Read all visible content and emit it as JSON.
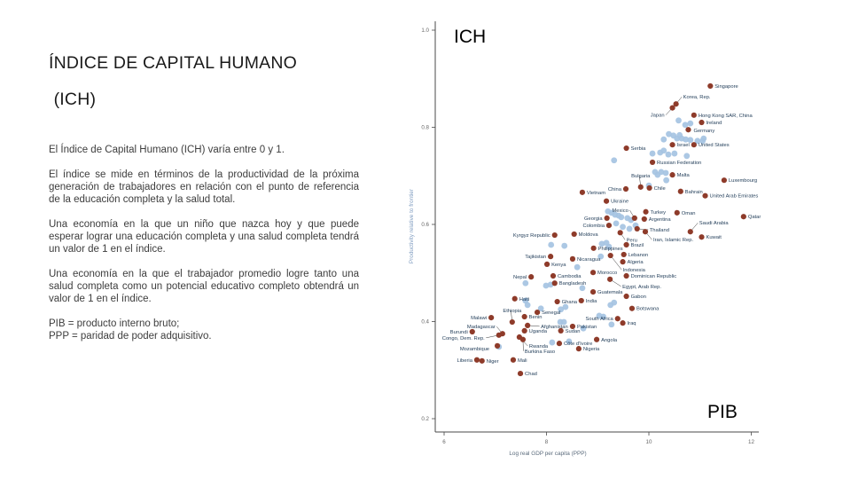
{
  "slide": {
    "title_line1": "ÍNDICE DE CAPITAL HUMANO",
    "title_line2": " (ICH)",
    "paragraphs": [
      "El Índice de Capital Humano (ICH) varía entre 0 y 1.",
      "El índice se mide en términos de la productividad de la próxima generación de trabajadores en relación con el punto de referencia de la educación completa y la salud total.",
      "Una economía en la que un niño que nazca hoy y que puede esperar lograr una educación completa y una salud completa tendrá un valor de 1 en el índice.",
      "Una economía en la que el trabajador promedio logre tanto una salud completa como un potencial educativo completo obtendrá un valor de 1 en el índice.",
      "PIB = producto interno bruto;\nPPP = paridad de poder adquisitivo."
    ]
  },
  "chart_data": {
    "type": "scatter",
    "title": "",
    "xlabel": "Log real GDP per capita (PPP)",
    "ylabel": "Productivity relative to frontier",
    "corner_label_top": "ICH",
    "corner_label_bottom": "PIB",
    "xlim": [
      6,
      12
    ],
    "ylim": [
      0.2,
      1.0
    ],
    "x_ticks": [
      6,
      8,
      10,
      12
    ],
    "y_ticks": [
      0.2,
      0.4,
      0.6,
      0.8,
      1.0
    ],
    "grid": false,
    "legend": "none",
    "colors": {
      "labeled_dot": "#8e3b2a",
      "unlabeled_dot": "#a5c3e2",
      "country_label": "#1f3b57",
      "leader_line": "#3a3a3a",
      "axis": "#4a4a4a",
      "tick_label": "#666666",
      "x_title": "#5b6b7c",
      "y_title": "#7f9cc0",
      "corner_label": "#000000"
    },
    "series": [
      {
        "name": "labeled-countries",
        "points": [
          {
            "name": "Singapore",
            "x": 11.2,
            "y": 0.885
          },
          {
            "name": "Korea, Rep.",
            "x": 10.53,
            "y": 0.848,
            "lox": 3,
            "loy": -8,
            "leader": true
          },
          {
            "name": "Japan",
            "x": 10.46,
            "y": 0.84,
            "side": "l",
            "lox": -4,
            "loy": 8,
            "leader": true
          },
          {
            "name": "Hong Kong SAR, China",
            "x": 10.88,
            "y": 0.825
          },
          {
            "name": "Ireland",
            "x": 11.03,
            "y": 0.81
          },
          {
            "name": "Germany",
            "x": 10.77,
            "y": 0.795,
            "lox": 1,
            "loy": 1
          },
          {
            "name": "Israel",
            "x": 10.46,
            "y": 0.764
          },
          {
            "name": "United States",
            "x": 10.88,
            "y": 0.764
          },
          {
            "name": "Serbia",
            "x": 9.56,
            "y": 0.757
          },
          {
            "name": "Russian Federation",
            "x": 10.07,
            "y": 0.728
          },
          {
            "name": "Malta",
            "x": 10.46,
            "y": 0.702
          },
          {
            "name": "Luxembourg",
            "x": 11.47,
            "y": 0.691
          },
          {
            "name": "Bulgaria",
            "x": 9.84,
            "y": 0.677,
            "anchor": "middle",
            "lox": 0,
            "loy": -13,
            "leader": true
          },
          {
            "name": "China",
            "x": 9.55,
            "y": 0.673,
            "side": "l"
          },
          {
            "name": "Chile",
            "x": 10.01,
            "y": 0.675
          },
          {
            "name": "Vietnam",
            "x": 8.7,
            "y": 0.666
          },
          {
            "name": "Bahrain",
            "x": 10.62,
            "y": 0.668
          },
          {
            "name": "United Arab Emirates",
            "x": 11.1,
            "y": 0.659
          },
          {
            "name": "Ukraine",
            "x": 9.17,
            "y": 0.648
          },
          {
            "name": "Mexico",
            "x": 9.72,
            "y": 0.613,
            "side": "l",
            "lox": -2,
            "loy": -9,
            "leader": true
          },
          {
            "name": "Turkey",
            "x": 9.94,
            "y": 0.626
          },
          {
            "name": "Oman",
            "x": 10.55,
            "y": 0.624
          },
          {
            "name": "Qatar",
            "x": 11.85,
            "y": 0.616
          },
          {
            "name": "Georgia",
            "x": 9.18,
            "y": 0.613,
            "side": "l"
          },
          {
            "name": "Argentina",
            "x": 9.91,
            "y": 0.611
          },
          {
            "name": "Colombia",
            "x": 9.22,
            "y": 0.598,
            "side": "l"
          },
          {
            "name": "Saudi Arabia",
            "x": 10.81,
            "y": 0.585,
            "lox": 5,
            "loy": -10,
            "leader": true
          },
          {
            "name": "Thailand",
            "x": 9.77,
            "y": 0.591,
            "lox": 9,
            "loy": 1,
            "leader": true
          },
          {
            "name": "Iran, Islamic Rep.",
            "x": 9.93,
            "y": 0.585,
            "lox": 4,
            "loy": 9,
            "leader": true
          },
          {
            "name": "Kuwait",
            "x": 11.03,
            "y": 0.574
          },
          {
            "name": "Peru",
            "x": 9.44,
            "y": 0.583,
            "lox": 2,
            "loy": 8,
            "leader": true
          },
          {
            "name": "Moldova",
            "x": 8.54,
            "y": 0.58
          },
          {
            "name": "Kyrgyz Republic",
            "x": 8.16,
            "y": 0.578,
            "side": "l"
          },
          {
            "name": "Brazil",
            "x": 9.56,
            "y": 0.558
          },
          {
            "name": "Philippines",
            "x": 8.92,
            "y": 0.551
          },
          {
            "name": "Lebanon",
            "x": 9.51,
            "y": 0.538
          },
          {
            "name": "Indonesia",
            "x": 9.25,
            "y": 0.536,
            "lox": 9,
            "loy": 16,
            "leader": true
          },
          {
            "name": "Algeria",
            "x": 9.49,
            "y": 0.523
          },
          {
            "name": "Tajikistan",
            "x": 8.08,
            "y": 0.534,
            "side": "l"
          },
          {
            "name": "Nicaragua",
            "x": 8.51,
            "y": 0.529
          },
          {
            "name": "Kenya",
            "x": 8.01,
            "y": 0.518
          },
          {
            "name": "Morocco",
            "x": 8.91,
            "y": 0.501
          },
          {
            "name": "Dominican Republic",
            "x": 9.56,
            "y": 0.494
          },
          {
            "name": "Nepal",
            "x": 7.7,
            "y": 0.492,
            "side": "l"
          },
          {
            "name": "Cambodia",
            "x": 8.13,
            "y": 0.494
          },
          {
            "name": "Egypt, Arab Rep.",
            "x": 9.24,
            "y": 0.487,
            "lox": 9,
            "loy": 8,
            "leader": true
          },
          {
            "name": "Bangladesh",
            "x": 8.16,
            "y": 0.479
          },
          {
            "name": "Guatemala",
            "x": 8.91,
            "y": 0.461
          },
          {
            "name": "Gabon",
            "x": 9.56,
            "y": 0.452
          },
          {
            "name": "Haiti",
            "x": 7.38,
            "y": 0.447
          },
          {
            "name": "Ghana",
            "x": 8.21,
            "y": 0.441
          },
          {
            "name": "India",
            "x": 8.68,
            "y": 0.443
          },
          {
            "name": "Botswana",
            "x": 9.67,
            "y": 0.427
          },
          {
            "name": "Senegal",
            "x": 7.82,
            "y": 0.419
          },
          {
            "name": "Ethiopia",
            "x": 7.33,
            "y": 0.399,
            "anchor": "middle",
            "lox": 0,
            "loy": -13,
            "leader": true
          },
          {
            "name": "Malawi",
            "x": 6.92,
            "y": 0.408,
            "side": "l"
          },
          {
            "name": "Benin",
            "x": 7.57,
            "y": 0.41
          },
          {
            "name": "South Africa",
            "x": 9.39,
            "y": 0.406,
            "side": "l"
          },
          {
            "name": "Iraq",
            "x": 9.49,
            "y": 0.397
          },
          {
            "name": "Madagascar",
            "x": 7.14,
            "y": 0.375,
            "side": "l",
            "lox": -3,
            "loy": -8,
            "leader": true
          },
          {
            "name": "Afghanistan",
            "x": 7.63,
            "y": 0.392,
            "lox": 10,
            "loy": 1,
            "leader": true
          },
          {
            "name": "Pakistan",
            "x": 8.51,
            "y": 0.39
          },
          {
            "name": "Uganda",
            "x": 7.57,
            "y": 0.381
          },
          {
            "name": "Sudan",
            "x": 8.28,
            "y": 0.381
          },
          {
            "name": "Burundi",
            "x": 6.55,
            "y": 0.379,
            "side": "l"
          },
          {
            "name": "Congo, Dem. Rep.",
            "x": 7.07,
            "y": 0.372,
            "side": "l",
            "lox": -11,
            "loy": 3,
            "leader": true
          },
          {
            "name": "Angola",
            "x": 8.98,
            "y": 0.363
          },
          {
            "name": "Rwanda",
            "x": 7.47,
            "y": 0.368,
            "lox": 6,
            "loy": 10,
            "leader": true
          },
          {
            "name": "Mozambique",
            "x": 7.04,
            "y": 0.35,
            "side": "l",
            "lox": -4,
            "loy": 3
          },
          {
            "name": "Côte d'Ivoire",
            "x": 8.25,
            "y": 0.355
          },
          {
            "name": "Burkina Faso",
            "x": 7.54,
            "y": 0.363,
            "lox": -3,
            "loy": 13,
            "leader": true
          },
          {
            "name": "Nigeria",
            "x": 8.63,
            "y": 0.344
          },
          {
            "name": "Liberia",
            "x": 6.64,
            "y": 0.321,
            "side": "l"
          },
          {
            "name": "Niger",
            "x": 6.74,
            "y": 0.319
          },
          {
            "name": "Mali",
            "x": 7.35,
            "y": 0.321
          },
          {
            "name": "Chad",
            "x": 7.49,
            "y": 0.293
          }
        ]
      },
      {
        "name": "unlabeled-countries",
        "points": [
          [
            10.58,
            0.814
          ],
          [
            10.71,
            0.805
          ],
          [
            10.81,
            0.808
          ],
          [
            10.29,
            0.775
          ],
          [
            10.39,
            0.786
          ],
          [
            10.48,
            0.783
          ],
          [
            10.55,
            0.777
          ],
          [
            10.64,
            0.777
          ],
          [
            10.72,
            0.775
          ],
          [
            10.81,
            0.774
          ],
          [
            10.95,
            0.772
          ],
          [
            11.05,
            0.772
          ],
          [
            10.6,
            0.784
          ],
          [
            11.07,
            0.777
          ],
          [
            10.07,
            0.746
          ],
          [
            10.22,
            0.748
          ],
          [
            10.29,
            0.752
          ],
          [
            10.38,
            0.744
          ],
          [
            10.5,
            0.746
          ],
          [
            10.74,
            0.741
          ],
          [
            9.32,
            0.732
          ],
          [
            10.24,
            0.708
          ],
          [
            10.33,
            0.706
          ],
          [
            10.17,
            0.702
          ],
          [
            10.34,
            0.691
          ],
          [
            10.12,
            0.708
          ],
          [
            10.0,
            0.68
          ],
          [
            9.2,
            0.627
          ],
          [
            9.27,
            0.624
          ],
          [
            9.34,
            0.62
          ],
          [
            9.41,
            0.618
          ],
          [
            9.46,
            0.615
          ],
          [
            9.58,
            0.613
          ],
          [
            9.65,
            0.609
          ],
          [
            9.36,
            0.602
          ],
          [
            9.49,
            0.595
          ],
          [
            9.62,
            0.591
          ],
          [
            9.74,
            0.598
          ],
          [
            8.09,
            0.558
          ],
          [
            8.35,
            0.556
          ],
          [
            9.08,
            0.56
          ],
          [
            9.17,
            0.562
          ],
          [
            9.22,
            0.554
          ],
          [
            9.06,
            0.534
          ],
          [
            8.6,
            0.512
          ],
          [
            7.59,
            0.479
          ],
          [
            7.99,
            0.474
          ],
          [
            8.08,
            0.476
          ],
          [
            8.7,
            0.469
          ],
          [
            7.59,
            0.443
          ],
          [
            7.63,
            0.434
          ],
          [
            8.28,
            0.425
          ],
          [
            9.32,
            0.439
          ],
          [
            7.89,
            0.427
          ],
          [
            8.37,
            0.43
          ],
          [
            9.25,
            0.434
          ],
          [
            9.03,
            0.412
          ],
          [
            9.11,
            0.41
          ],
          [
            8.27,
            0.399
          ],
          [
            8.34,
            0.399
          ],
          [
            8.11,
            0.357
          ],
          [
            7.07,
            0.348
          ],
          [
            8.44,
            0.359
          ],
          [
            8.72,
            0.386
          ],
          [
            9.27,
            0.394
          ]
        ]
      }
    ]
  }
}
